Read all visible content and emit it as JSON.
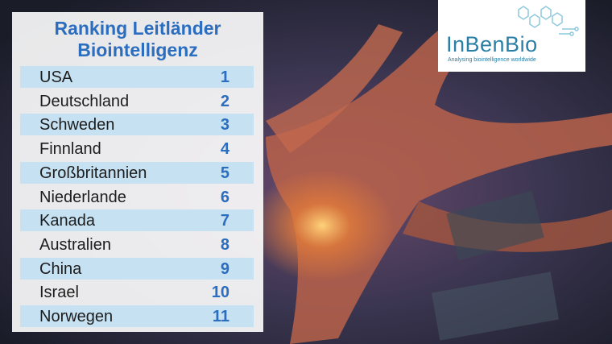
{
  "title": [
    "Ranking Leitländer",
    "Biointelligenz"
  ],
  "table": {
    "rows": [
      [
        "USA",
        1
      ],
      [
        "Deutschland",
        2
      ],
      [
        "Schweden",
        3
      ],
      [
        "Finnland",
        4
      ],
      [
        "Großbritannien",
        5
      ],
      [
        "Niederlande",
        6
      ],
      [
        "Kanada",
        7
      ],
      [
        "Australien",
        8
      ],
      [
        "China",
        9
      ],
      [
        "Israel",
        10
      ],
      [
        "Norwegen",
        11
      ]
    ]
  },
  "logo": {
    "name": "InBenBio",
    "tagline": "Analysing biointelligence worldwide"
  }
}
